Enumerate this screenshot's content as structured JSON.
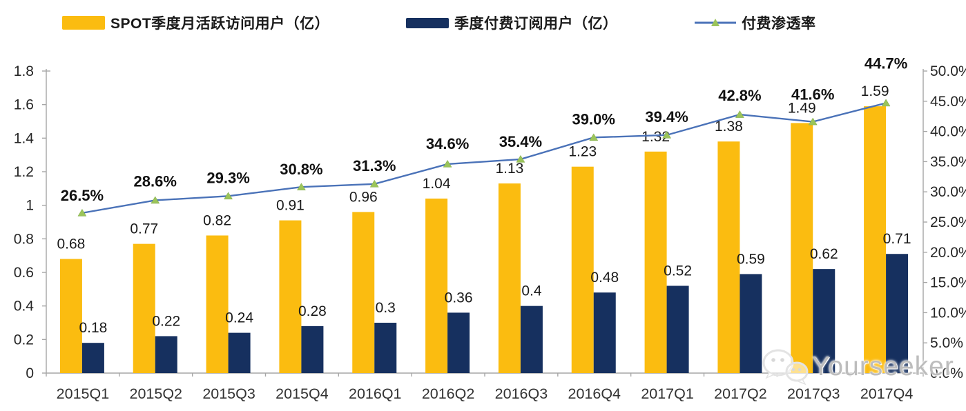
{
  "legend": {
    "mau": "SPOT季度月活跃访问用户（亿）",
    "subscribers": "季度付费订阅用户（亿）",
    "penetration": "付费渗透率"
  },
  "watermark": {
    "text": "Yourseeker"
  },
  "colors": {
    "mau_bar": "#FBBC10",
    "subscriber_bar": "#16305F",
    "line": "#4A72B8",
    "marker": "#9BC45A",
    "axis": "#A6A6A6",
    "value_label": "#1A1A1A",
    "tick_label": "#262626"
  },
  "chart_data": {
    "type": "combo",
    "subtypes": [
      "bar",
      "bar",
      "line"
    ],
    "categories": [
      "2015Q1",
      "2015Q2",
      "2015Q3",
      "2015Q4",
      "2016Q1",
      "2016Q2",
      "2016Q3",
      "2016Q4",
      "2017Q1",
      "2017Q2",
      "2017Q3",
      "2017Q4"
    ],
    "series": [
      {
        "name": "SPOT季度月活跃访问用户（亿）",
        "type": "bar",
        "axis": "left",
        "color": "#FBBC10",
        "values": [
          0.68,
          0.77,
          0.82,
          0.91,
          0.96,
          1.04,
          1.13,
          1.23,
          1.32,
          1.38,
          1.49,
          1.59
        ],
        "labels": [
          "0.68",
          "0.77",
          "0.82",
          "0.91",
          "0.96",
          "1.04",
          "1.13",
          "1.23",
          "1.32",
          "1.38",
          "1.49",
          "1.59"
        ]
      },
      {
        "name": "季度付费订阅用户（亿）",
        "type": "bar",
        "axis": "left",
        "color": "#16305F",
        "values": [
          0.18,
          0.22,
          0.24,
          0.28,
          0.3,
          0.36,
          0.4,
          0.48,
          0.52,
          0.59,
          0.62,
          0.71
        ],
        "labels": [
          "0.18",
          "0.22",
          "0.24",
          "0.28",
          "0.3",
          "0.36",
          "0.4",
          "0.48",
          "0.52",
          "0.59",
          "0.62",
          "0.71"
        ]
      },
      {
        "name": "付费渗透率",
        "type": "line",
        "axis": "right",
        "color": "#4A72B8",
        "marker": "triangle",
        "marker_color": "#9BC45A",
        "values": [
          26.5,
          28.6,
          29.3,
          30.8,
          31.3,
          34.6,
          35.4,
          39.0,
          39.4,
          42.8,
          41.6,
          44.7
        ],
        "labels": [
          "26.5%",
          "28.6%",
          "29.3%",
          "30.8%",
          "31.3%",
          "34.6%",
          "35.4%",
          "39.0%",
          "39.4%",
          "42.8%",
          "41.6%",
          "44.7%"
        ]
      }
    ],
    "left_axis": {
      "min": 0,
      "max": 1.8,
      "step": 0.2,
      "ticks": [
        "1.8",
        "1.6",
        "1.4",
        "1.2",
        "1",
        "0.8",
        "0.6",
        "0.4",
        "0.2",
        "0"
      ]
    },
    "right_axis": {
      "min": 0,
      "max": 50,
      "step": 5,
      "ticks": [
        "50.0%",
        "45.0%",
        "40.0%",
        "35.0%",
        "30.0%",
        "25.0%",
        "20.0%",
        "15.0%",
        "10.0%",
        "5.0%",
        "0.0%"
      ]
    },
    "grid": false,
    "legend_position": "top",
    "title": ""
  }
}
